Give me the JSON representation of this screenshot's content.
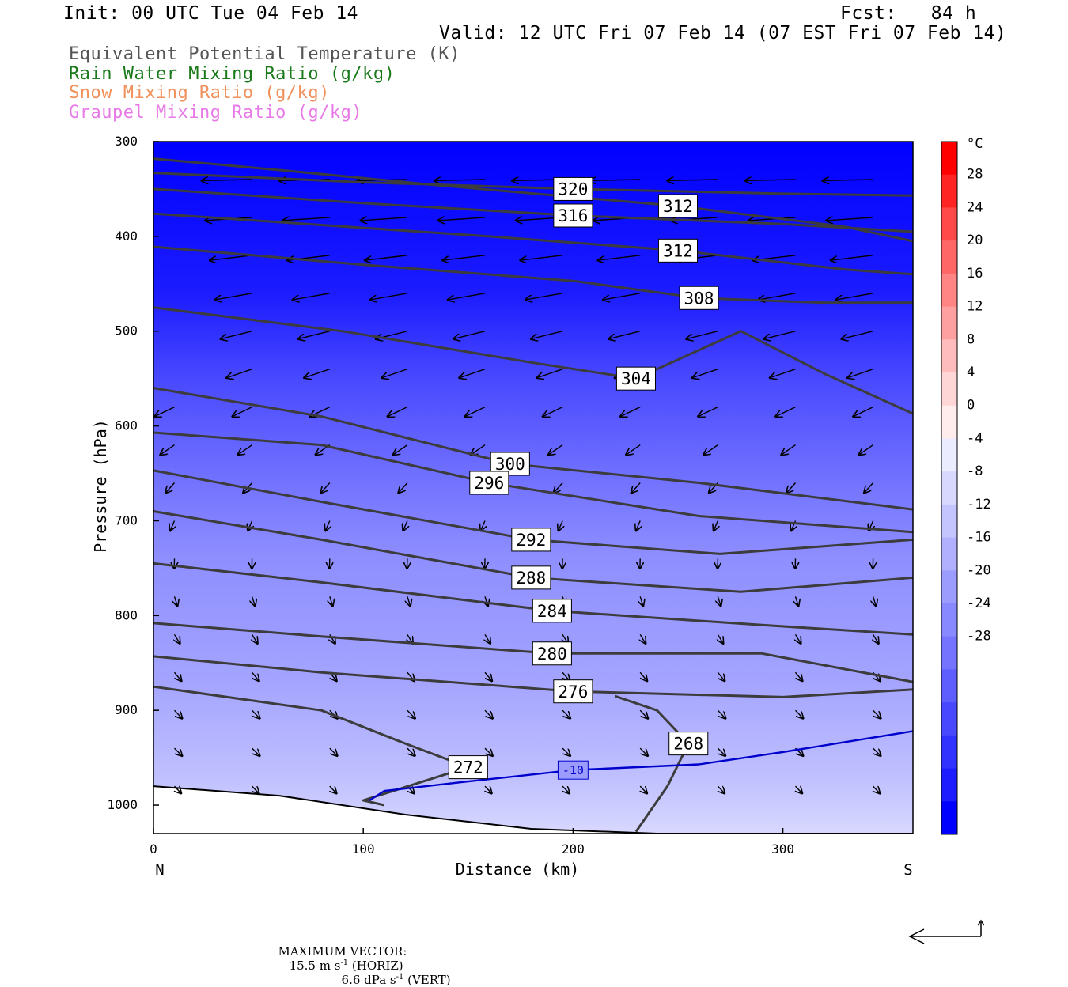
{
  "header": {
    "init": "Init: 00 UTC Tue 04 Feb 14",
    "fcst": "Fcst:   84 h",
    "valid": "Valid: 12 UTC Fri 07 Feb 14 (07 EST Fri 07 Feb 14)"
  },
  "legend": [
    {
      "label": "Equivalent Potential Temperature (K)",
      "color": "#555555"
    },
    {
      "label": "Rain Water Mixing Ratio (g/kg)",
      "color": "#1a7a1a"
    },
    {
      "label": "Snow Mixing Ratio (g/kg)",
      "color": "#f0905a"
    },
    {
      "label": "Graupel Mixing Ratio (g/kg)",
      "color": "#e87ae8"
    }
  ],
  "colorbar": {
    "unit": "°C",
    "labels": [
      "28",
      "24",
      "20",
      "16",
      "12",
      "8",
      "4",
      "0",
      "-4",
      "-8",
      "-12",
      "-16",
      "-20",
      "-24",
      "-28"
    ],
    "colors_warm": [
      "#ff0000",
      "#ff2424",
      "#ff4848",
      "#ff6666",
      "#ff8484",
      "#ffa0a0",
      "#ffbcbc",
      "#ffd6d6",
      "#ffecec"
    ],
    "colors_cold": [
      "#ececff",
      "#d8d8ff",
      "#c4c4ff",
      "#b0b0ff",
      "#9c9cff",
      "#8888ff",
      "#7474ff",
      "#5e5eff",
      "#4848ff",
      "#3232ff",
      "#1c1cff",
      "#0000ff"
    ]
  },
  "footer": {
    "max_vector_label": "MAXIMUM VECTOR:",
    "horiz_value": "15.5 m s",
    "horiz_exp": "-1",
    "horiz_unit": " (HORIZ)",
    "vert_value": "6.6 dPa s",
    "vert_exp": "-1",
    "vert_unit": " (VERT)"
  },
  "chart_data": {
    "type": "cross-section",
    "xlabel": "Distance (km)",
    "ylabel": "Pressure (hPa)",
    "xlim": [
      0,
      362
    ],
    "ylim": [
      1030,
      300
    ],
    "x_ticks": [
      0,
      100,
      200,
      300
    ],
    "y_ticks": [
      300,
      400,
      500,
      600,
      700,
      800,
      900,
      1000
    ],
    "left_end": "N",
    "right_end": "S",
    "theta_e_contours": [
      {
        "label": "320",
        "points": [
          [
            0,
            333
          ],
          [
            100,
            343
          ],
          [
            200,
            350
          ],
          [
            300,
            355
          ],
          [
            362,
            357
          ]
        ]
      },
      {
        "label": "316",
        "points": [
          [
            0,
            350
          ],
          [
            100,
            365
          ],
          [
            200,
            378
          ],
          [
            300,
            387
          ],
          [
            362,
            395
          ]
        ]
      },
      {
        "label": "312",
        "points": [
          [
            0,
            318
          ],
          [
            60,
            330
          ],
          [
            130,
            345
          ],
          [
            250,
            368
          ],
          [
            330,
            390
          ],
          [
            362,
            405
          ]
        ]
      },
      {
        "label": "312",
        "points": [
          [
            0,
            376
          ],
          [
            80,
            388
          ],
          [
            160,
            400
          ],
          [
            250,
            415
          ],
          [
            330,
            435
          ],
          [
            362,
            440
          ]
        ]
      },
      {
        "label": "308",
        "points": [
          [
            0,
            411
          ],
          [
            100,
            430
          ],
          [
            200,
            447
          ],
          [
            260,
            465
          ],
          [
            320,
            470
          ],
          [
            362,
            470
          ]
        ]
      },
      {
        "label": "304",
        "points": [
          [
            0,
            475
          ],
          [
            90,
            500
          ],
          [
            180,
            533
          ],
          [
            230,
            550
          ],
          [
            280,
            500
          ],
          [
            320,
            545
          ],
          [
            362,
            587
          ]
        ]
      },
      {
        "label": "300",
        "points": [
          [
            0,
            560
          ],
          [
            80,
            590
          ],
          [
            170,
            640
          ],
          [
            260,
            660
          ],
          [
            362,
            688
          ]
        ]
      },
      {
        "label": "296",
        "points": [
          [
            0,
            607
          ],
          [
            80,
            620
          ],
          [
            160,
            660
          ],
          [
            260,
            695
          ],
          [
            362,
            712
          ]
        ]
      },
      {
        "label": "292",
        "points": [
          [
            0,
            647
          ],
          [
            80,
            680
          ],
          [
            180,
            720
          ],
          [
            270,
            735
          ],
          [
            362,
            720
          ]
        ]
      },
      {
        "label": "288",
        "points": [
          [
            0,
            690
          ],
          [
            80,
            720
          ],
          [
            180,
            760
          ],
          [
            280,
            775
          ],
          [
            362,
            760
          ]
        ]
      },
      {
        "label": "284",
        "points": [
          [
            0,
            745
          ],
          [
            80,
            765
          ],
          [
            190,
            795
          ],
          [
            290,
            810
          ],
          [
            362,
            820
          ]
        ]
      },
      {
        "label": "280",
        "points": [
          [
            0,
            808
          ],
          [
            80,
            822
          ],
          [
            190,
            840
          ],
          [
            290,
            840
          ],
          [
            362,
            870
          ]
        ]
      },
      {
        "label": "276",
        "points": [
          [
            0,
            843
          ],
          [
            80,
            860
          ],
          [
            200,
            880
          ],
          [
            300,
            886
          ],
          [
            362,
            878
          ]
        ]
      },
      {
        "label": "272",
        "points": [
          [
            0,
            875
          ],
          [
            80,
            900
          ],
          [
            120,
            935
          ],
          [
            150,
            960
          ],
          [
            100,
            995
          ],
          [
            110,
            1000
          ]
        ]
      },
      {
        "label": "268",
        "points": [
          [
            230,
            1028
          ],
          [
            245,
            980
          ],
          [
            255,
            935
          ],
          [
            240,
            900
          ],
          [
            220,
            885
          ]
        ]
      }
    ],
    "temperature_contour_-10": [
      {
        "label": "-10",
        "points": [
          [
            103,
            995
          ],
          [
            110,
            985
          ],
          [
            150,
            975
          ],
          [
            200,
            963
          ],
          [
            260,
            957
          ],
          [
            300,
            944
          ],
          [
            362,
            922
          ]
        ]
      }
    ],
    "terrain_surface_hPa": [
      [
        0,
        980
      ],
      [
        60,
        990
      ],
      [
        120,
        1010
      ],
      [
        180,
        1025
      ],
      [
        240,
        1030
      ],
      [
        362,
        1030
      ]
    ]
  }
}
